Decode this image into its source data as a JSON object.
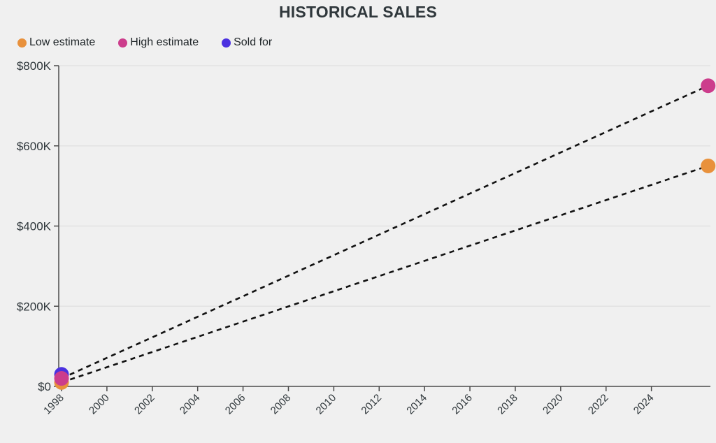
{
  "title": "HISTORICAL SALES",
  "legend": {
    "items": [
      {
        "label": "Low estimate",
        "color": "#E8913C"
      },
      {
        "label": "High estimate",
        "color": "#CC3D8C"
      },
      {
        "label": "Sold for",
        "color": "#4B31E0"
      }
    ]
  },
  "chart_data": {
    "type": "scatter",
    "title": "HISTORICAL SALES",
    "xlabel": "",
    "ylabel": "",
    "x_unit": "year",
    "xlim": [
      1998,
      2026.6
    ],
    "ylim": [
      0,
      800000
    ],
    "x_ticks": [
      1998,
      2000,
      2002,
      2004,
      2006,
      2008,
      2010,
      2012,
      2014,
      2016,
      2018,
      2020,
      2022,
      2024
    ],
    "y_ticks": [
      {
        "value": 0,
        "label": "$0"
      },
      {
        "value": 200000,
        "label": "$200K"
      },
      {
        "value": 400000,
        "label": "$400K"
      },
      {
        "value": 600000,
        "label": "$600K"
      },
      {
        "value": 800000,
        "label": "$800K"
      }
    ],
    "grid": "horizontal",
    "legend_position": "top-left",
    "connector_style": "black-dashed",
    "series": [
      {
        "name": "Low estimate",
        "color": "#E8913C",
        "dashed_connector": true,
        "points": [
          {
            "x": 1998,
            "y": 10000
          },
          {
            "x": 2026.5,
            "y": 550000
          }
        ]
      },
      {
        "name": "High estimate",
        "color": "#CC3D8C",
        "dashed_connector": true,
        "points": [
          {
            "x": 1998,
            "y": 20000
          },
          {
            "x": 2026.5,
            "y": 750000
          }
        ]
      },
      {
        "name": "Sold for",
        "color": "#4B31E0",
        "dashed_connector": false,
        "points": [
          {
            "x": 1998,
            "y": 30000
          }
        ]
      }
    ]
  },
  "colors": {
    "background": "#F0F0F0",
    "grid": "#E2E2E2",
    "axis": "#4A4A4A",
    "tick_label": "#2F373B",
    "title": "#30383C",
    "connector": "#111111"
  }
}
